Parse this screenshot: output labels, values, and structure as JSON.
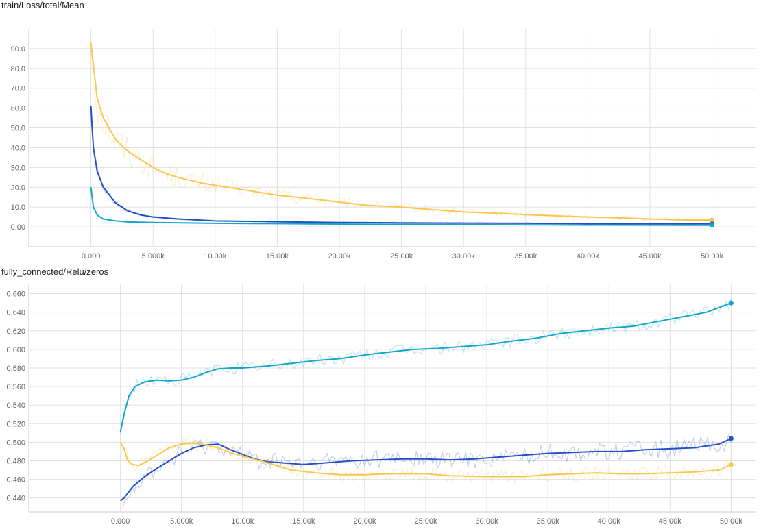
{
  "chart_data": [
    {
      "type": "line",
      "title": "train/Loss/total/Mean",
      "xlabel": "",
      "ylabel": "",
      "x_ticks": [
        "0.000",
        "5.000k",
        "10.00k",
        "15.00k",
        "20.00k",
        "25.00k",
        "30.00k",
        "35.00k",
        "40.00k",
        "45.00k",
        "50.00k"
      ],
      "y_ticks": [
        "0.00",
        "10.0",
        "20.0",
        "30.0",
        "40.0",
        "50.0",
        "60.0",
        "70.0",
        "80.0",
        "90.0"
      ],
      "xlim": [
        -5000,
        53500
      ],
      "ylim": [
        -10,
        100
      ],
      "grid": true,
      "series": [
        {
          "color": "#f9c74f",
          "x": [
            0,
            500,
            1000,
            2000,
            3000,
            4000,
            5000,
            6000,
            7000,
            8000,
            9000,
            10000,
            12000,
            15000,
            18000,
            20000,
            22000,
            25000,
            28000,
            30000,
            33000,
            35000,
            38000,
            40000,
            43000,
            45000,
            48000,
            50000
          ],
          "y": [
            93,
            65,
            55,
            44,
            38,
            34,
            30,
            27,
            25,
            23.5,
            22,
            21,
            19,
            16,
            14,
            12.5,
            11,
            10,
            8.5,
            7.5,
            6.8,
            6.2,
            5.5,
            5.0,
            4.5,
            4.0,
            3.5,
            3.5
          ]
        },
        {
          "color": "#2450c6",
          "x": [
            0,
            200,
            500,
            1000,
            2000,
            3000,
            4000,
            5000,
            7000,
            10000,
            15000,
            20000,
            25000,
            30000,
            35000,
            40000,
            45000,
            50000
          ],
          "y": [
            61,
            40,
            28,
            20,
            12,
            8,
            6,
            5,
            4,
            3,
            2.6,
            2.2,
            2.0,
            1.9,
            1.8,
            1.6,
            1.5,
            1.5
          ],
          "noise": 1.2
        },
        {
          "color": "#13a7c7",
          "x": [
            0,
            200,
            500,
            1000,
            1500,
            2000,
            3000,
            5000,
            10000,
            20000,
            30000,
            40000,
            50000
          ],
          "y": [
            20,
            10,
            6,
            4,
            3.5,
            3.0,
            2.5,
            2.2,
            1.8,
            1.4,
            1.1,
            0.9,
            0.8
          ],
          "noise": 0.5
        }
      ]
    },
    {
      "type": "line",
      "title": "fully_connected/Relu/zeros",
      "xlabel": "",
      "ylabel": "",
      "x_ticks": [
        "0.000",
        "5.000k",
        "10.00k",
        "15.00k",
        "20.00k",
        "25.00k",
        "30.00k",
        "35.00k",
        "40.00k",
        "45.00k",
        "50.00k"
      ],
      "y_ticks": [
        "0.440",
        "0.460",
        "0.480",
        "0.500",
        "0.520",
        "0.540",
        "0.560",
        "0.580",
        "0.600",
        "0.620",
        "0.640",
        "0.660"
      ],
      "xlim": [
        -7500,
        52000
      ],
      "ylim": [
        0.425,
        0.67
      ],
      "grid": true,
      "series": [
        {
          "color": "#13a7c7",
          "x": [
            0,
            300,
            700,
            1200,
            2000,
            3000,
            4000,
            5000,
            6000,
            7000,
            8000,
            9000,
            10000,
            12000,
            14000,
            16000,
            18000,
            20000,
            22000,
            24000,
            26000,
            28000,
            30000,
            32000,
            34000,
            36000,
            38000,
            40000,
            42000,
            44000,
            46000,
            48000,
            50000
          ],
          "y": [
            0.511,
            0.53,
            0.55,
            0.56,
            0.565,
            0.567,
            0.566,
            0.567,
            0.57,
            0.575,
            0.579,
            0.58,
            0.58,
            0.582,
            0.585,
            0.588,
            0.59,
            0.594,
            0.597,
            0.6,
            0.601,
            0.603,
            0.605,
            0.609,
            0.612,
            0.617,
            0.62,
            0.623,
            0.625,
            0.63,
            0.635,
            0.64,
            0.65
          ],
          "noise": 0.007
        },
        {
          "color": "#2450c6",
          "x": [
            0,
            300,
            1000,
            2000,
            3000,
            4000,
            5000,
            6000,
            7000,
            8000,
            9000,
            10000,
            11000,
            12000,
            14000,
            15000,
            17000,
            19000,
            21000,
            23000,
            25000,
            27000,
            29000,
            31000,
            33000,
            35000,
            37000,
            39000,
            41000,
            43000,
            45000,
            47000,
            49000,
            50000
          ],
          "y": [
            0.437,
            0.44,
            0.452,
            0.463,
            0.472,
            0.48,
            0.488,
            0.494,
            0.497,
            0.498,
            0.492,
            0.487,
            0.482,
            0.479,
            0.477,
            0.476,
            0.478,
            0.48,
            0.481,
            0.482,
            0.482,
            0.481,
            0.482,
            0.484,
            0.486,
            0.488,
            0.489,
            0.49,
            0.49,
            0.492,
            0.493,
            0.494,
            0.498,
            0.504
          ],
          "noise": 0.01
        },
        {
          "color": "#f9c74f",
          "x": [
            0,
            300,
            600,
            1000,
            1500,
            2000,
            3000,
            4000,
            5000,
            6000,
            7000,
            8000,
            9000,
            10000,
            12000,
            14000,
            16000,
            18000,
            20000,
            22000,
            25000,
            27000,
            30000,
            33000,
            35000,
            37000,
            39000,
            41000,
            43000,
            45000,
            47000,
            49000,
            50000
          ],
          "y": [
            0.5,
            0.493,
            0.48,
            0.476,
            0.475,
            0.478,
            0.486,
            0.494,
            0.498,
            0.499,
            0.497,
            0.494,
            0.489,
            0.485,
            0.478,
            0.47,
            0.467,
            0.465,
            0.465,
            0.466,
            0.466,
            0.464,
            0.463,
            0.463,
            0.465,
            0.466,
            0.467,
            0.466,
            0.466,
            0.467,
            0.468,
            0.47,
            0.476
          ],
          "noise": 0.008
        }
      ]
    }
  ]
}
